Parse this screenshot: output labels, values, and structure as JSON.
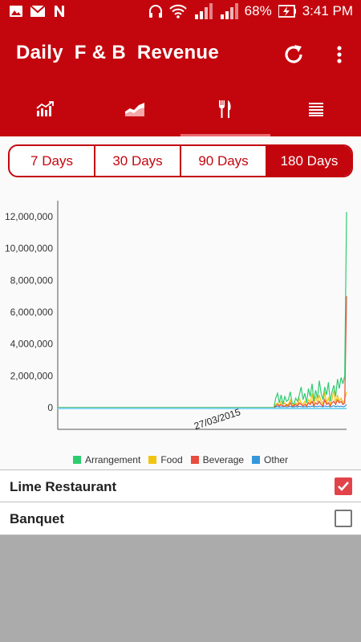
{
  "status_bar": {
    "battery": "68%",
    "time": "3:41 PM"
  },
  "app_bar": {
    "title": "Daily  F & B  Revenue"
  },
  "tabs": [
    {
      "icon": "bar-chart-trend-icon"
    },
    {
      "icon": "area-chart-icon"
    },
    {
      "icon": "fork-knife-icon",
      "active": true
    },
    {
      "icon": "list-icon"
    }
  ],
  "range": {
    "options": [
      "7 Days",
      "30 Days",
      "90 Days",
      "180 Days"
    ],
    "selected": "180 Days"
  },
  "chart_data": {
    "type": "line",
    "y_ticks": [
      "12,000,000",
      "10,000,000",
      "8,000,000",
      "6,000,000",
      "4,000,000",
      "2,000,000",
      "0"
    ],
    "ylim": [
      0,
      12500000
    ],
    "x_label_shown": "27/03/2015",
    "series": [
      {
        "name": "Arrangement",
        "color": "#2ecc71",
        "values": [
          0,
          0,
          0,
          0,
          0,
          0,
          0,
          0,
          0,
          0,
          0,
          0,
          0,
          0,
          0,
          0,
          0,
          0,
          0,
          0,
          0,
          0,
          0,
          0,
          0,
          0,
          0,
          0,
          0,
          0,
          0,
          0,
          0,
          0,
          0,
          0,
          0,
          0,
          0,
          0,
          0,
          0,
          0,
          0,
          0,
          0,
          0,
          0,
          0,
          0,
          0,
          0,
          0,
          0,
          0,
          0,
          0,
          0,
          0,
          0,
          0,
          0,
          0,
          0,
          0,
          0,
          0,
          0,
          0,
          0,
          0,
          0,
          0,
          0,
          0,
          0,
          0,
          0,
          0,
          0,
          0,
          0,
          0,
          0,
          0,
          0,
          0,
          0,
          0,
          0,
          0,
          0,
          0,
          0,
          0,
          0,
          0,
          0,
          0,
          0,
          0,
          0,
          0,
          0,
          0,
          0,
          0,
          0,
          0,
          0,
          0,
          0,
          0,
          0,
          0,
          0,
          0,
          0,
          0,
          0,
          600000,
          900000,
          300000,
          800000,
          200000,
          700000,
          400000,
          500000,
          1000000,
          300000,
          200000,
          600000,
          400000,
          800000,
          1300000,
          500000,
          900000,
          300000,
          1200000,
          700000,
          1500000,
          400000,
          1100000,
          600000,
          1700000,
          900000,
          500000,
          1300000,
          800000,
          1600000,
          400000,
          1000000,
          1400000,
          700000,
          1800000,
          1200000,
          1900000,
          1500000,
          2000000,
          12300000
        ]
      },
      {
        "name": "Food",
        "color": "#f1c40f",
        "values": [
          0,
          0,
          0,
          0,
          0,
          0,
          0,
          0,
          0,
          0,
          0,
          0,
          0,
          0,
          0,
          0,
          0,
          0,
          0,
          0,
          0,
          0,
          0,
          0,
          0,
          0,
          0,
          0,
          0,
          0,
          0,
          0,
          0,
          0,
          0,
          0,
          0,
          0,
          0,
          0,
          0,
          0,
          0,
          0,
          0,
          0,
          0,
          0,
          0,
          0,
          0,
          0,
          0,
          0,
          0,
          0,
          0,
          0,
          0,
          0,
          0,
          0,
          0,
          0,
          0,
          0,
          0,
          0,
          0,
          0,
          0,
          0,
          0,
          0,
          0,
          0,
          0,
          0,
          0,
          0,
          0,
          0,
          0,
          0,
          0,
          0,
          0,
          0,
          0,
          0,
          0,
          0,
          0,
          0,
          0,
          0,
          0,
          0,
          0,
          0,
          0,
          0,
          0,
          0,
          0,
          0,
          0,
          0,
          0,
          0,
          0,
          0,
          0,
          0,
          0,
          0,
          0,
          0,
          0,
          0,
          200000,
          300000,
          100000,
          400000,
          200000,
          300000,
          100000,
          200000,
          500000,
          200000,
          100000,
          300000,
          200000,
          600000,
          300000,
          200000,
          400000,
          100000,
          500000,
          300000,
          900000,
          200000,
          700000,
          300000,
          800000,
          400000,
          200000,
          1000000,
          300000,
          600000,
          200000,
          500000,
          1100000,
          300000,
          800000,
          400000,
          600000,
          300000,
          500000,
          1000000
        ]
      },
      {
        "name": "Beverage",
        "color": "#e74c3c",
        "values": [
          0,
          0,
          0,
          0,
          0,
          0,
          0,
          0,
          0,
          0,
          0,
          0,
          0,
          0,
          0,
          0,
          0,
          0,
          0,
          0,
          0,
          0,
          0,
          0,
          0,
          0,
          0,
          0,
          0,
          0,
          0,
          0,
          0,
          0,
          0,
          0,
          0,
          0,
          0,
          0,
          0,
          0,
          0,
          0,
          0,
          0,
          0,
          0,
          0,
          0,
          0,
          0,
          0,
          0,
          0,
          0,
          0,
          0,
          0,
          0,
          0,
          0,
          0,
          0,
          0,
          0,
          0,
          0,
          0,
          0,
          0,
          0,
          0,
          0,
          0,
          0,
          0,
          0,
          0,
          0,
          0,
          0,
          0,
          0,
          0,
          0,
          0,
          0,
          0,
          0,
          0,
          0,
          0,
          0,
          0,
          0,
          0,
          0,
          0,
          0,
          0,
          0,
          0,
          0,
          0,
          0,
          0,
          0,
          0,
          0,
          0,
          0,
          0,
          0,
          0,
          0,
          0,
          0,
          0,
          0,
          100000,
          200000,
          100000,
          200000,
          100000,
          100000,
          200000,
          100000,
          300000,
          100000,
          100000,
          200000,
          100000,
          300000,
          200000,
          100000,
          200000,
          100000,
          300000,
          200000,
          400000,
          100000,
          300000,
          200000,
          400000,
          200000,
          100000,
          500000,
          200000,
          300000,
          100000,
          300000,
          400000,
          200000,
          500000,
          300000,
          400000,
          200000,
          300000,
          7000000
        ]
      },
      {
        "name": "Other",
        "color": "#3498db",
        "values": [
          0,
          0,
          0,
          0,
          0,
          0,
          0,
          0,
          0,
          0,
          0,
          0,
          0,
          0,
          0,
          0,
          0,
          0,
          0,
          0,
          0,
          0,
          0,
          0,
          0,
          0,
          0,
          0,
          0,
          0,
          0,
          0,
          0,
          0,
          0,
          0,
          0,
          0,
          0,
          0,
          0,
          0,
          0,
          0,
          0,
          0,
          0,
          0,
          0,
          0,
          0,
          0,
          0,
          0,
          0,
          0,
          0,
          0,
          0,
          0,
          0,
          0,
          0,
          0,
          0,
          0,
          0,
          0,
          0,
          0,
          0,
          0,
          0,
          0,
          0,
          0,
          0,
          0,
          0,
          0,
          0,
          0,
          0,
          0,
          0,
          0,
          0,
          0,
          0,
          0,
          0,
          0,
          0,
          0,
          0,
          0,
          0,
          0,
          0,
          0,
          0,
          0,
          0,
          0,
          0,
          0,
          0,
          0,
          0,
          0,
          0,
          0,
          0,
          0,
          0,
          0,
          0,
          0,
          0,
          0,
          50000,
          80000,
          40000,
          60000,
          50000,
          70000,
          40000,
          60000,
          80000,
          50000,
          40000,
          70000,
          50000,
          90000,
          60000,
          50000,
          70000,
          40000,
          80000,
          60000,
          100000,
          50000,
          80000,
          60000,
          100000,
          70000,
          50000,
          110000,
          60000,
          90000,
          50000,
          80000,
          120000,
          60000,
          100000,
          70000,
          90000,
          60000,
          80000,
          200000
        ]
      }
    ]
  },
  "filters": [
    {
      "label": "Lime Restaurant",
      "checked": true
    },
    {
      "label": "Banquet",
      "checked": false
    }
  ]
}
